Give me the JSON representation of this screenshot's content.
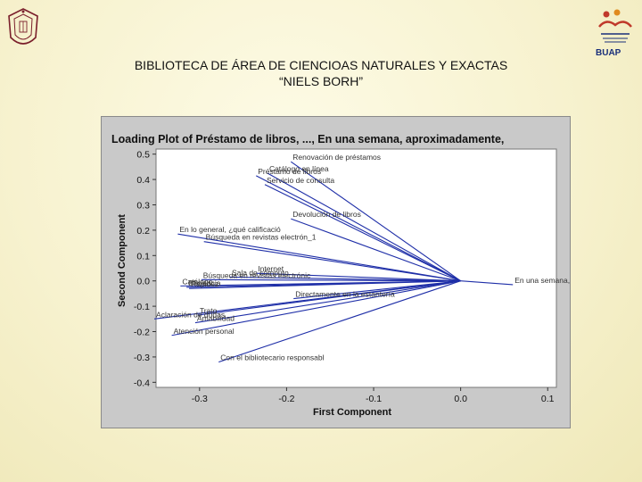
{
  "page": {
    "title_line1": "BIBLIOTECA DE ÁREA DE CIENCIOAS NATURALES Y EXACTAS",
    "title_line2": "“NIELS BORH”",
    "logo_right_text": "BUAP"
  },
  "chart_data": {
    "type": "scatter",
    "title": "Loading Plot of Préstamo de libros, ..., En una semana, aproximadamente,",
    "xlabel": "First Component",
    "ylabel": "Second Component",
    "xlim": [
      -0.35,
      0.11
    ],
    "ylim": [
      -0.42,
      0.52
    ],
    "xticks": [
      -0.3,
      -0.2,
      -0.1,
      0.0,
      0.1
    ],
    "xtick_labels": [
      "-0.3",
      "-0.2",
      "-0.1",
      "0.0",
      "0.1"
    ],
    "yticks": [
      0.5,
      0.4,
      0.3,
      0.2,
      0.1,
      0.0,
      -0.1,
      -0.2,
      -0.3,
      -0.4
    ],
    "ytick_labels": [
      "0.5",
      "0.4",
      "0.3",
      "0.2",
      "0.1",
      "0.0",
      "-0.1",
      "-0.2",
      "-0.3",
      "-0.4"
    ],
    "grid": false,
    "line_color": "#1f2fa8",
    "points": [
      {
        "label": "Renovación de préstamos",
        "x": -0.195,
        "y": 0.47
      },
      {
        "label": "Catálogo en línea",
        "x": -0.222,
        "y": 0.425
      },
      {
        "label": "Préstamo de libros",
        "x": -0.235,
        "y": 0.415
      },
      {
        "label": "Servicio de consulta",
        "x": -0.225,
        "y": 0.38
      },
      {
        "label": "Devolución de libros",
        "x": -0.195,
        "y": 0.245
      },
      {
        "label": "En lo general, ¿qué calificació",
        "x": -0.325,
        "y": 0.185
      },
      {
        "label": "Búsqueda en revistas electrón_1",
        "x": -0.295,
        "y": 0.155
      },
      {
        "label": "Internet",
        "x": -0.235,
        "y": 0.03
      },
      {
        "label": "Sala de cómputo",
        "x": -0.265,
        "y": 0.015
      },
      {
        "label": "Búsqueda en revistas electrónic",
        "x": -0.298,
        "y": 0.005
      },
      {
        "label": "Catálogo",
        "x": -0.322,
        "y": -0.02
      },
      {
        "label": "Eficiencia",
        "x": -0.315,
        "y": -0.025
      },
      {
        "label": "Rapidez",
        "x": -0.312,
        "y": -0.03
      },
      {
        "label": "Directamente en la estantería",
        "x": -0.192,
        "y": -0.07
      },
      {
        "label": "Trato",
        "x": -0.302,
        "y": -0.135
      },
      {
        "label": "Aclaración de dudas",
        "x": -0.352,
        "y": -0.15
      },
      {
        "label": "Amabilidad",
        "x": -0.305,
        "y": -0.165
      },
      {
        "label": "Atención personal",
        "x": -0.332,
        "y": -0.215
      },
      {
        "label": "Con el bibliotecario responsabl",
        "x": -0.278,
        "y": -0.32
      },
      {
        "label": "En una semana, aproximadamente,",
        "x": 0.06,
        "y": -0.015
      }
    ],
    "origin": {
      "x": 0.0,
      "y": 0.0
    }
  }
}
